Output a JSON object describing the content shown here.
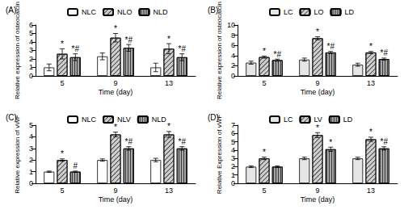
{
  "chart_data": [
    {
      "type": "bar",
      "title": "(A)",
      "x_label": "Time (day)",
      "y_label": "Relative expression of osteocalcin",
      "categories": [
        "5",
        "9",
        "13"
      ],
      "ylim": [
        0,
        6
      ],
      "yticks": [
        0,
        1,
        2,
        3,
        4,
        5,
        6
      ],
      "grid": false,
      "legend": "top",
      "series": [
        {
          "name": "NLC",
          "color": "#ffffff",
          "values": [
            1.0,
            2.3,
            1.0
          ],
          "errors": [
            0.4,
            0.4,
            0.5
          ],
          "annotations": [
            null,
            null,
            null
          ]
        },
        {
          "name": "NLO",
          "color": "#d0d0d0",
          "values": [
            2.6,
            4.5,
            3.2
          ],
          "errors": [
            0.6,
            0.5,
            0.6
          ],
          "annotations": [
            "*",
            "*",
            "*"
          ]
        },
        {
          "name": "NLD",
          "color": "#a6a6a6",
          "values": [
            2.2,
            3.3,
            2.2
          ],
          "errors": [
            0.4,
            0.4,
            0.4
          ],
          "annotations": [
            "*#",
            "*#",
            "*#"
          ]
        }
      ]
    },
    {
      "type": "bar",
      "title": "(B)",
      "x_label": "Time (day)",
      "y_label": "Relative expression of osteocalcin",
      "categories": [
        "5",
        "9",
        "13"
      ],
      "ylim": [
        0,
        10
      ],
      "yticks": [
        0,
        2,
        4,
        6,
        8,
        10
      ],
      "grid": false,
      "legend": "top",
      "series": [
        {
          "name": "LC",
          "color": "#e6e6e6",
          "values": [
            2.6,
            3.2,
            2.2
          ],
          "errors": [
            0.3,
            0.3,
            0.3
          ],
          "annotations": [
            null,
            null,
            null
          ]
        },
        {
          "name": "LO",
          "color": "#d0d0d0",
          "values": [
            3.7,
            7.4,
            4.6
          ],
          "errors": [
            0.2,
            0.3,
            0.2
          ],
          "annotations": [
            "*",
            "*",
            "*"
          ]
        },
        {
          "name": "LD",
          "color": "#a6a6a6",
          "values": [
            3.1,
            4.6,
            3.3
          ],
          "errors": [
            0.2,
            0.2,
            0.2
          ],
          "annotations": [
            "*#",
            "*#",
            "*#"
          ]
        }
      ]
    },
    {
      "type": "bar",
      "title": "(C)",
      "x_label": "Time (day)",
      "y_label": "Relative expression of vWF",
      "categories": [
        "5",
        "9",
        "13"
      ],
      "ylim": [
        0,
        5
      ],
      "yticks": [
        0,
        1,
        2,
        3,
        4,
        5
      ],
      "grid": false,
      "legend": "top",
      "series": [
        {
          "name": "NLC",
          "color": "#ffffff",
          "values": [
            1.0,
            2.0,
            2.0
          ],
          "errors": [
            0.05,
            0.1,
            0.15
          ],
          "annotations": [
            null,
            null,
            null
          ]
        },
        {
          "name": "NLV",
          "color": "#d0d0d0",
          "values": [
            2.0,
            4.2,
            4.2
          ],
          "errors": [
            0.1,
            0.2,
            0.25
          ],
          "annotations": [
            "*",
            "*",
            "*"
          ]
        },
        {
          "name": "NLD",
          "color": "#a6a6a6",
          "values": [
            1.0,
            3.0,
            3.0
          ],
          "errors": [
            0.05,
            0.15,
            0.15
          ],
          "annotations": [
            "#",
            "*#",
            "*#"
          ]
        }
      ]
    },
    {
      "type": "bar",
      "title": "(D)",
      "x_label": "Time (day)",
      "y_label": "Relative Expression of vWF",
      "categories": [
        "5",
        "9",
        "13"
      ],
      "ylim": [
        0,
        7
      ],
      "yticks": [
        0,
        1,
        2,
        3,
        4,
        5,
        6,
        7
      ],
      "grid": false,
      "legend": "top",
      "series": [
        {
          "name": "LC",
          "color": "#e6e6e6",
          "values": [
            2.0,
            3.0,
            3.0
          ],
          "errors": [
            0.1,
            0.15,
            0.15
          ],
          "annotations": [
            null,
            null,
            null
          ]
        },
        {
          "name": "LV",
          "color": "#d0d0d0",
          "values": [
            3.0,
            5.8,
            5.3
          ],
          "errors": [
            0.15,
            0.3,
            0.25
          ],
          "annotations": [
            "*",
            "*",
            "*"
          ]
        },
        {
          "name": "LD",
          "color": "#a6a6a6",
          "values": [
            2.0,
            4.1,
            4.2
          ],
          "errors": [
            0.1,
            0.25,
            0.2
          ],
          "annotations": [
            null,
            "*",
            "*#"
          ]
        }
      ]
    }
  ]
}
